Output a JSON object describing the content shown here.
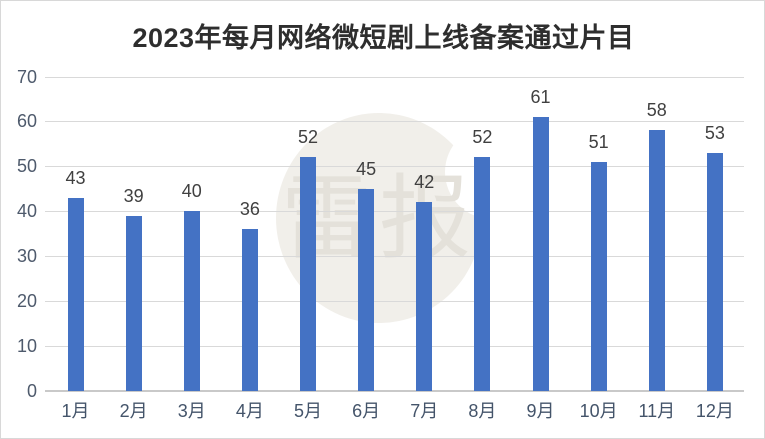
{
  "title": "2023年每月网络微短剧上线备案通过片目",
  "watermark": {
    "text": "雷报"
  },
  "chart_data": {
    "type": "bar",
    "title": "2023年每月网络微短剧上线备案通过片目",
    "categories": [
      "1月",
      "2月",
      "3月",
      "4月",
      "5月",
      "6月",
      "7月",
      "8月",
      "9月",
      "10月",
      "11月",
      "12月"
    ],
    "values": [
      43,
      39,
      40,
      36,
      52,
      45,
      42,
      52,
      61,
      51,
      58,
      53
    ],
    "xlabel": "",
    "ylabel": "",
    "ylim": [
      0,
      70
    ],
    "yticks": [
      0,
      10,
      20,
      30,
      40,
      50,
      60,
      70
    ],
    "grid": true,
    "legend": false,
    "data_labels": true,
    "colors": {
      "bar": "#4472C4",
      "data_label": "#404040",
      "axis_label": "#44546A",
      "y_axis_label": "#4E5A6C",
      "gridline": "#D9D9D9",
      "axis_line": "#C9C9C9",
      "title": "#2E2E2E",
      "watermark_circle": "#F1EFEA",
      "watermark_text": "#E4E1DA"
    }
  }
}
